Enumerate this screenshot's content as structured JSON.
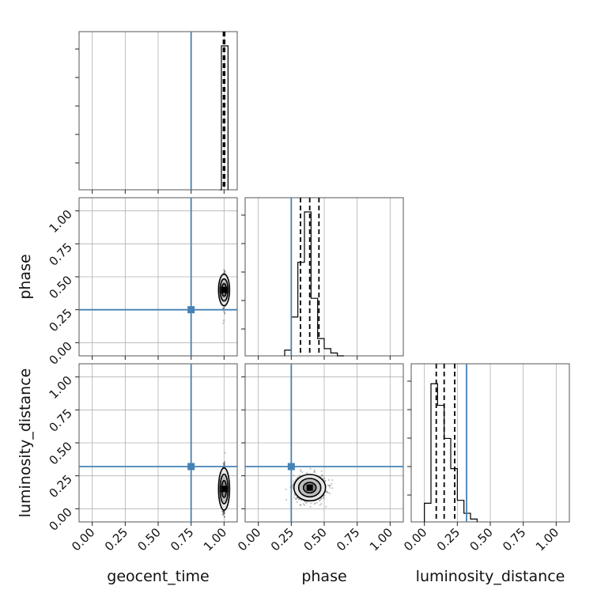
{
  "chart_data": {
    "type": "corner",
    "parameters": [
      "geocent_time",
      "phase",
      "luminosity_distance"
    ],
    "axis_range": [
      -0.1,
      1.1
    ],
    "ticks": [
      0.0,
      0.25,
      0.5,
      0.75,
      1.0
    ],
    "tick_labels": [
      "0.00",
      "0.25",
      "0.50",
      "0.75",
      "1.00"
    ],
    "grid": true,
    "truths": {
      "geocent_time": 0.75,
      "phase": 0.25,
      "luminosity_distance": 0.32
    },
    "truth_color": "#4682b4",
    "marginals": {
      "geocent_time": {
        "bin_edges": [
          0.97,
          0.98,
          1.03
        ],
        "counts": [
          0.0,
          1.0
        ],
        "quantiles": [
          0.995,
          1.0,
          1.005
        ]
      },
      "phase": {
        "bin_edges": [
          0.2,
          0.25,
          0.3,
          0.35,
          0.4,
          0.45,
          0.5,
          0.55,
          0.6,
          0.65
        ],
        "counts": [
          0.04,
          0.27,
          0.65,
          1.0,
          0.4,
          0.12,
          0.05,
          0.02,
          0.0
        ],
        "quantiles": [
          0.32,
          0.39,
          0.46
        ]
      },
      "luminosity_distance": {
        "bin_edges": [
          0.0,
          0.05,
          0.1,
          0.15,
          0.2,
          0.25,
          0.3,
          0.35,
          0.4
        ],
        "counts": [
          0.13,
          0.96,
          0.81,
          0.58,
          0.37,
          0.15,
          0.06,
          0.02
        ],
        "quantiles": [
          0.09,
          0.15,
          0.23
        ]
      }
    },
    "pairs": [
      {
        "x": "geocent_time",
        "y": "phase",
        "center": [
          1.0,
          0.4
        ],
        "spread": [
          0.005,
          0.06
        ]
      },
      {
        "x": "geocent_time",
        "y": "luminosity_distance",
        "center": [
          1.0,
          0.15
        ],
        "spread": [
          0.005,
          0.08
        ]
      },
      {
        "x": "phase",
        "y": "luminosity_distance",
        "center": [
          0.39,
          0.16
        ],
        "spread": [
          0.06,
          0.05
        ]
      }
    ]
  }
}
